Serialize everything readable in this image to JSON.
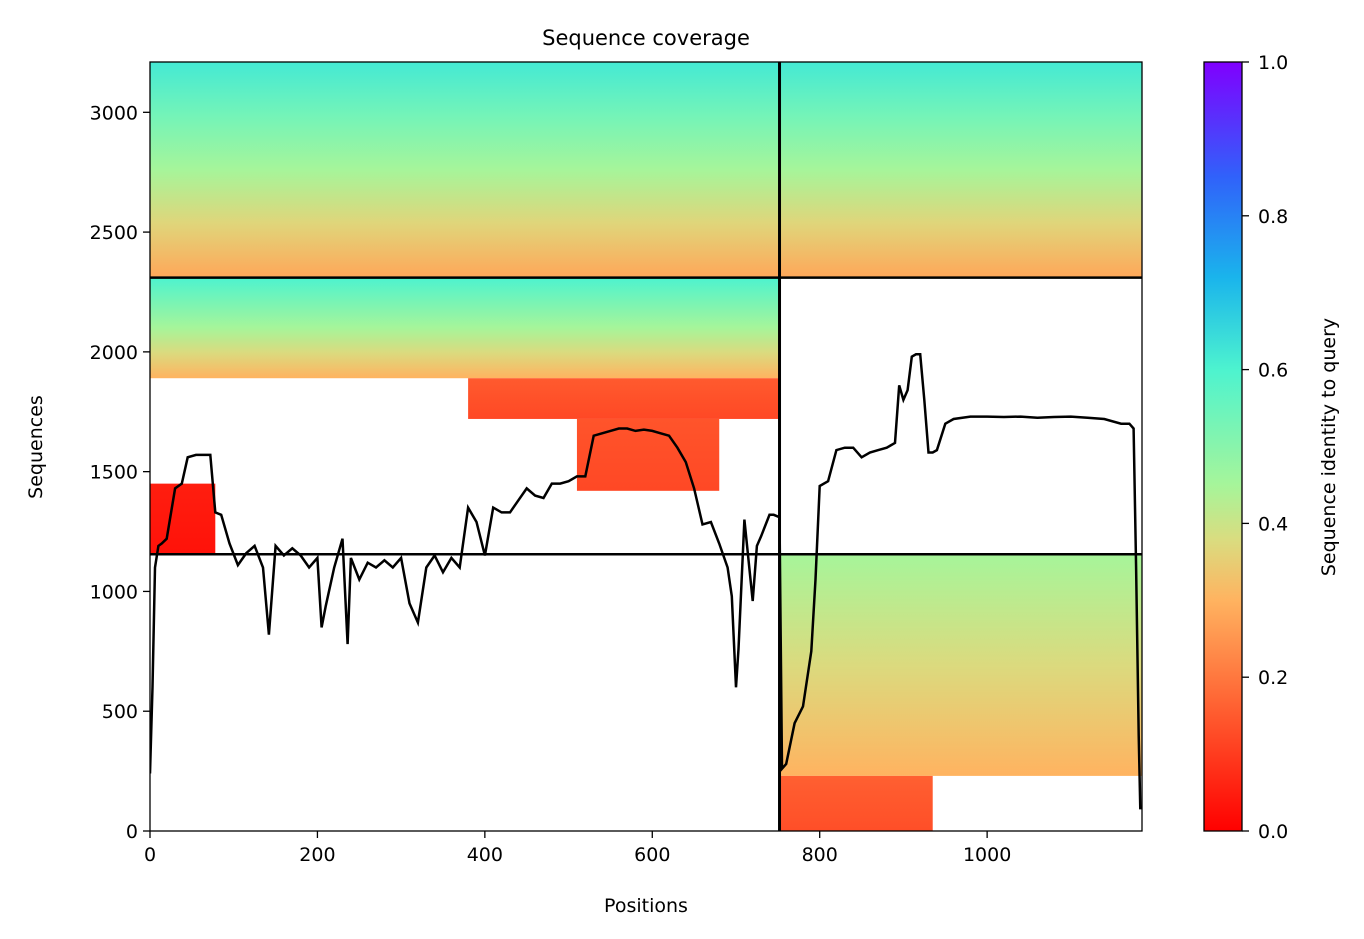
{
  "chart_data": {
    "type": "heatmap",
    "title": "Sequence coverage",
    "xlabel": "Positions",
    "ylabel": "Sequences",
    "xlim": [
      0,
      1185
    ],
    "ylim": [
      0,
      3210
    ],
    "x_ticks": [
      0,
      200,
      400,
      600,
      800,
      1000
    ],
    "y_ticks": [
      0,
      500,
      1000,
      1500,
      2000,
      2500,
      3000
    ],
    "colorbar": {
      "label": "Sequence identity to query",
      "range": [
        0,
        1
      ],
      "ticks": [
        0.0,
        0.2,
        0.4,
        0.6,
        0.8,
        1.0
      ],
      "colormap": "rainbow_r"
    },
    "chain_boundary_x": 752,
    "group_boundaries_y": [
      1155,
      2310
    ],
    "blocks": [
      {
        "x": [
          0,
          752
        ],
        "y": [
          2310,
          3210
        ],
        "identity_bottom": 0.28,
        "identity_top": 0.62
      },
      {
        "x": [
          752,
          1185
        ],
        "y": [
          2310,
          3210
        ],
        "identity_bottom": 0.28,
        "identity_top": 0.62
      },
      {
        "x": [
          0,
          752
        ],
        "y": [
          1890,
          2310
        ],
        "identity_bottom": 0.3,
        "identity_top": 0.6
      },
      {
        "x": [
          380,
          752
        ],
        "y": [
          1720,
          1890
        ],
        "identity_bottom": 0.12,
        "identity_top": 0.15
      },
      {
        "x": [
          510,
          680
        ],
        "y": [
          1420,
          1720
        ],
        "identity_bottom": 0.12,
        "identity_top": 0.14
      },
      {
        "x": [
          0,
          78
        ],
        "y": [
          1160,
          1450
        ],
        "identity_bottom": 0.03,
        "identity_top": 0.05
      },
      {
        "x": [
          752,
          1185
        ],
        "y": [
          230,
          1155
        ],
        "identity_bottom": 0.3,
        "identity_top": 0.45
      },
      {
        "x": [
          752,
          935
        ],
        "y": [
          0,
          230
        ],
        "identity_bottom": 0.13,
        "identity_top": 0.16
      }
    ],
    "coverage_line": {
      "x": [
        0,
        3,
        6,
        10,
        14,
        20,
        30,
        38,
        45,
        55,
        62,
        72,
        78,
        85,
        95,
        105,
        115,
        125,
        135,
        142,
        150,
        160,
        170,
        180,
        190,
        200,
        205,
        210,
        220,
        230,
        236,
        240,
        250,
        260,
        270,
        280,
        290,
        300,
        310,
        320,
        330,
        340,
        350,
        360,
        370,
        380,
        390,
        400,
        410,
        420,
        430,
        440,
        450,
        460,
        470,
        480,
        490,
        500,
        510,
        520,
        530,
        540,
        550,
        560,
        570,
        580,
        590,
        600,
        610,
        620,
        630,
        640,
        650,
        660,
        670,
        680,
        690,
        695,
        700,
        703,
        710,
        720,
        725,
        730,
        740,
        745,
        752,
        755,
        760,
        770,
        780,
        790,
        795,
        800,
        810,
        820,
        830,
        840,
        850,
        860,
        870,
        880,
        890,
        895,
        900,
        905,
        910,
        915,
        920,
        925,
        930,
        935,
        940,
        950,
        960,
        980,
        1000,
        1020,
        1040,
        1060,
        1080,
        1100,
        1120,
        1140,
        1160,
        1170,
        1175,
        1178,
        1181,
        1183
      ],
      "y": [
        240,
        600,
        1100,
        1190,
        1200,
        1220,
        1430,
        1450,
        1560,
        1570,
        1570,
        1570,
        1330,
        1320,
        1200,
        1110,
        1160,
        1190,
        1100,
        820,
        1190,
        1150,
        1180,
        1150,
        1100,
        1140,
        850,
        940,
        1100,
        1220,
        780,
        1140,
        1050,
        1120,
        1100,
        1130,
        1100,
        1140,
        950,
        870,
        1100,
        1150,
        1080,
        1140,
        1100,
        1350,
        1290,
        1150,
        1350,
        1330,
        1330,
        1380,
        1430,
        1400,
        1390,
        1450,
        1450,
        1460,
        1480,
        1480,
        1650,
        1660,
        1670,
        1680,
        1680,
        1670,
        1675,
        1670,
        1660,
        1650,
        1600,
        1540,
        1430,
        1280,
        1290,
        1200,
        1100,
        980,
        600,
        760,
        1300,
        960,
        1190,
        1230,
        1320,
        1320,
        1310,
        260,
        280,
        450,
        520,
        750,
        1050,
        1440,
        1460,
        1590,
        1600,
        1600,
        1560,
        1580,
        1590,
        1600,
        1620,
        1860,
        1800,
        1840,
        1980,
        1990,
        1990,
        1800,
        1580,
        1580,
        1590,
        1700,
        1720,
        1730,
        1730,
        1728,
        1730,
        1725,
        1728,
        1730,
        1725,
        1720,
        1700,
        1700,
        1680,
        1100,
        400,
        90
      ]
    }
  }
}
